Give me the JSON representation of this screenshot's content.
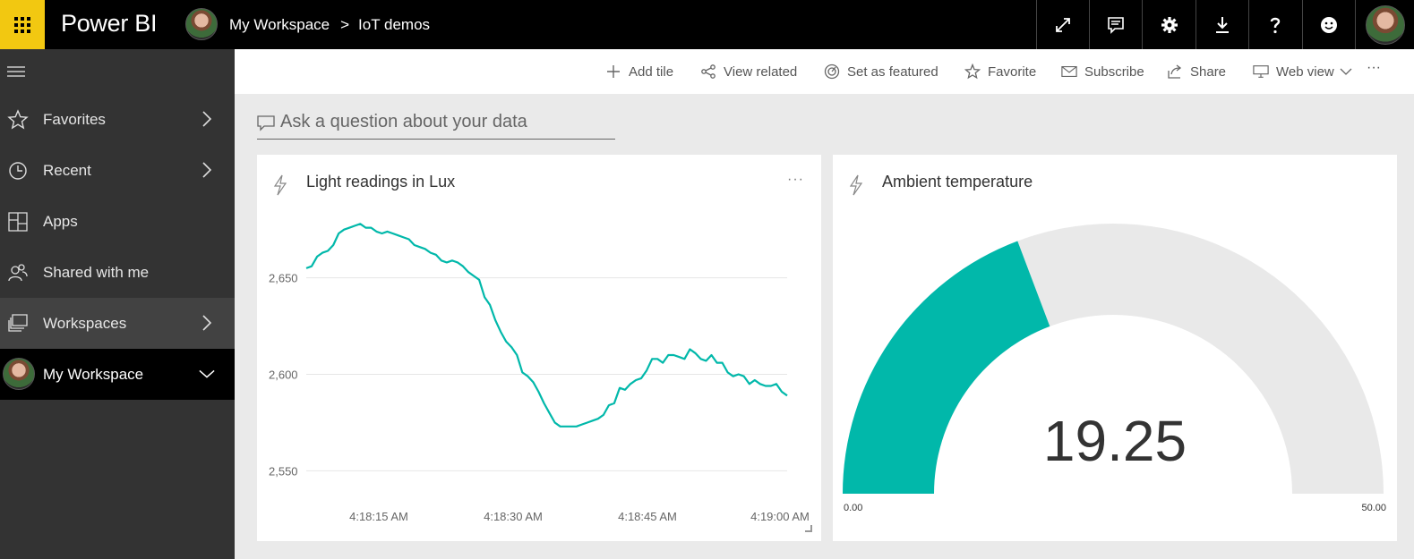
{
  "app": {
    "brand": "Power BI"
  },
  "breadcrumb": {
    "workspace": "My Workspace",
    "separator": ">",
    "dashboard": "IoT demos"
  },
  "top_icons": [
    "expand-icon",
    "comment-icon",
    "gear-icon",
    "download-icon",
    "help-icon",
    "smiley-icon",
    "profile-avatar"
  ],
  "sidebar": {
    "items": [
      {
        "label": "Favorites",
        "icon": "star-icon",
        "has_chevron": true
      },
      {
        "label": "Recent",
        "icon": "clock-icon",
        "has_chevron": true
      },
      {
        "label": "Apps",
        "icon": "apps-icon",
        "has_chevron": false
      },
      {
        "label": "Shared with me",
        "icon": "people-icon",
        "has_chevron": false
      },
      {
        "label": "Workspaces",
        "icon": "workspaces-icon",
        "has_chevron": true
      },
      {
        "label": "My Workspace",
        "icon": "avatar",
        "has_chevron": true
      }
    ]
  },
  "actions": {
    "add_tile": "Add tile",
    "view_related": "View related",
    "set_featured": "Set as featured",
    "favorite": "Favorite",
    "subscribe": "Subscribe",
    "share": "Share",
    "web_view": "Web view",
    "more": "···"
  },
  "qna": {
    "placeholder": "Ask a question about your data"
  },
  "tiles": {
    "light": {
      "title": "Light readings in Lux",
      "more": "···"
    },
    "temperature": {
      "title": "Ambient temperature"
    }
  },
  "colors": {
    "accent": "#01b8aa",
    "gauge_track": "#e9e9e9",
    "brand_yellow": "#f2c811"
  },
  "chart_data": [
    {
      "type": "line",
      "title": "Light readings in Lux",
      "xlabel": "",
      "ylabel": "",
      "x_ticks": [
        "4:18:15 AM",
        "4:18:30 AM",
        "4:18:45 AM",
        "4:19:00 AM"
      ],
      "y_ticks": [
        "2,650",
        "2,600",
        "2,550"
      ],
      "ylim": [
        2540,
        2686
      ],
      "grid": true,
      "series": [
        {
          "values": [
            2655,
            2656,
            2661,
            2663,
            2664,
            2667,
            2673,
            2675,
            2676,
            2677,
            2678,
            2676,
            2676,
            2674,
            2673,
            2674,
            2673,
            2672,
            2671,
            2670,
            2667,
            2666,
            2665,
            2663,
            2662,
            2659,
            2658,
            2659,
            2658,
            2656,
            2653,
            2651,
            2649,
            2640,
            2636,
            2628,
            2622,
            2617,
            2614,
            2610,
            2601,
            2599,
            2596,
            2591,
            2585,
            2580,
            2575,
            2573,
            2573,
            2573,
            2573,
            2574,
            2575,
            2576,
            2577,
            2579,
            2584,
            2585,
            2593,
            2592,
            2595,
            2597,
            2598,
            2602,
            2608,
            2608,
            2606,
            2610,
            2610,
            2609,
            2608,
            2613,
            2611,
            2608,
            2607,
            2610,
            2606,
            2606,
            2601,
            2599,
            2600,
            2599,
            2595,
            2597,
            2595,
            2594,
            2594,
            2595,
            2591,
            2589
          ]
        }
      ]
    },
    {
      "type": "gauge",
      "title": "Ambient temperature",
      "value": 19.25,
      "value_label": "19.25",
      "min": 0,
      "max": 50,
      "min_label": "0.00",
      "max_label": "50.00"
    }
  ]
}
